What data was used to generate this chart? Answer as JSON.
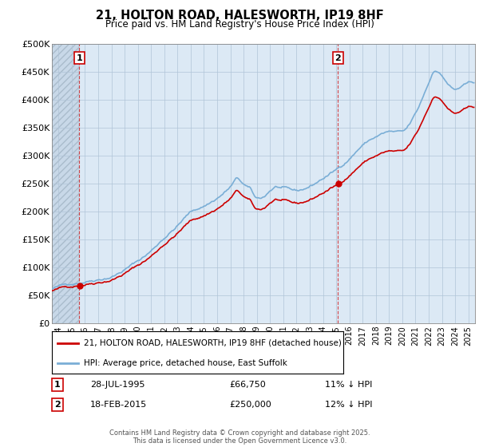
{
  "title": "21, HOLTON ROAD, HALESWORTH, IP19 8HF",
  "subtitle": "Price paid vs. HM Land Registry's House Price Index (HPI)",
  "ylim": [
    0,
    500000
  ],
  "yticks": [
    0,
    50000,
    100000,
    150000,
    200000,
    250000,
    300000,
    350000,
    400000,
    450000,
    500000
  ],
  "ytick_labels": [
    "£0",
    "£50K",
    "£100K",
    "£150K",
    "£200K",
    "£250K",
    "£300K",
    "£350K",
    "£400K",
    "£450K",
    "£500K"
  ],
  "xlim_start": 1993.5,
  "xlim_end": 2025.5,
  "xticks": [
    1994,
    1995,
    1996,
    1997,
    1998,
    1999,
    2000,
    2001,
    2002,
    2003,
    2004,
    2005,
    2006,
    2007,
    2008,
    2009,
    2010,
    2011,
    2012,
    2013,
    2014,
    2015,
    2016,
    2017,
    2018,
    2019,
    2020,
    2021,
    2022,
    2023,
    2024,
    2025
  ],
  "vline1_x": 1995.57,
  "vline2_x": 2015.13,
  "label1_text": "1",
  "label2_text": "2",
  "sale1_date": "28-JUL-1995",
  "sale1_price": "£66,750",
  "sale1_note": "11% ↓ HPI",
  "sale2_date": "18-FEB-2015",
  "sale2_price": "£250,000",
  "sale2_note": "12% ↓ HPI",
  "legend_line1": "21, HOLTON ROAD, HALESWORTH, IP19 8HF (detached house)",
  "legend_line2": "HPI: Average price, detached house, East Suffolk",
  "red_color": "#cc0000",
  "blue_color": "#7aaed6",
  "footer": "Contains HM Land Registry data © Crown copyright and database right 2025.\nThis data is licensed under the Open Government Licence v3.0.",
  "bg_color": "#dce9f5",
  "hatch_color": "#c8d8e8",
  "grid_color": "#b0c4d8"
}
